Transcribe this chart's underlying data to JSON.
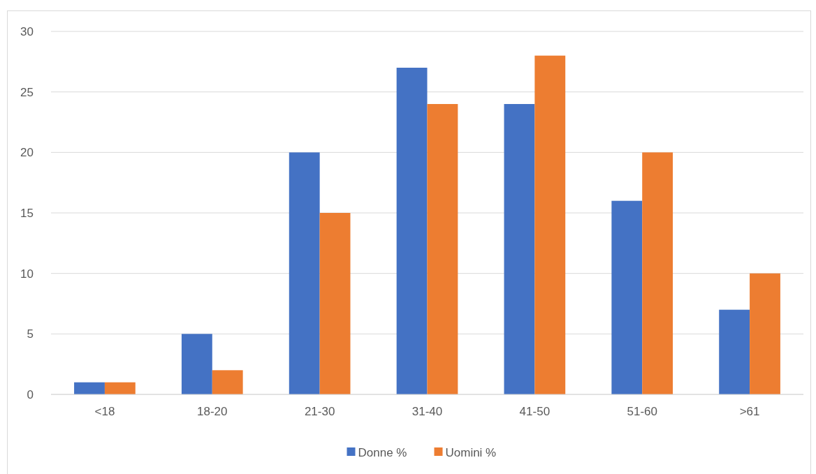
{
  "chart_data": {
    "type": "bar",
    "categories": [
      "<18",
      "18-20",
      "21-30",
      "31-40",
      "41-50",
      "51-60",
      ">61"
    ],
    "series": [
      {
        "name": "Donne %",
        "color": "#4472c4",
        "values": [
          1,
          5,
          20,
          27,
          24,
          16,
          7
        ]
      },
      {
        "name": "Uomini %",
        "color": "#ed7d31",
        "values": [
          1,
          2,
          15,
          24,
          28,
          20,
          10
        ]
      }
    ],
    "ylim": [
      0,
      30
    ],
    "yticks": [
      0,
      5,
      10,
      15,
      20,
      25,
      30
    ],
    "grid": "y",
    "legend": "bottom"
  }
}
